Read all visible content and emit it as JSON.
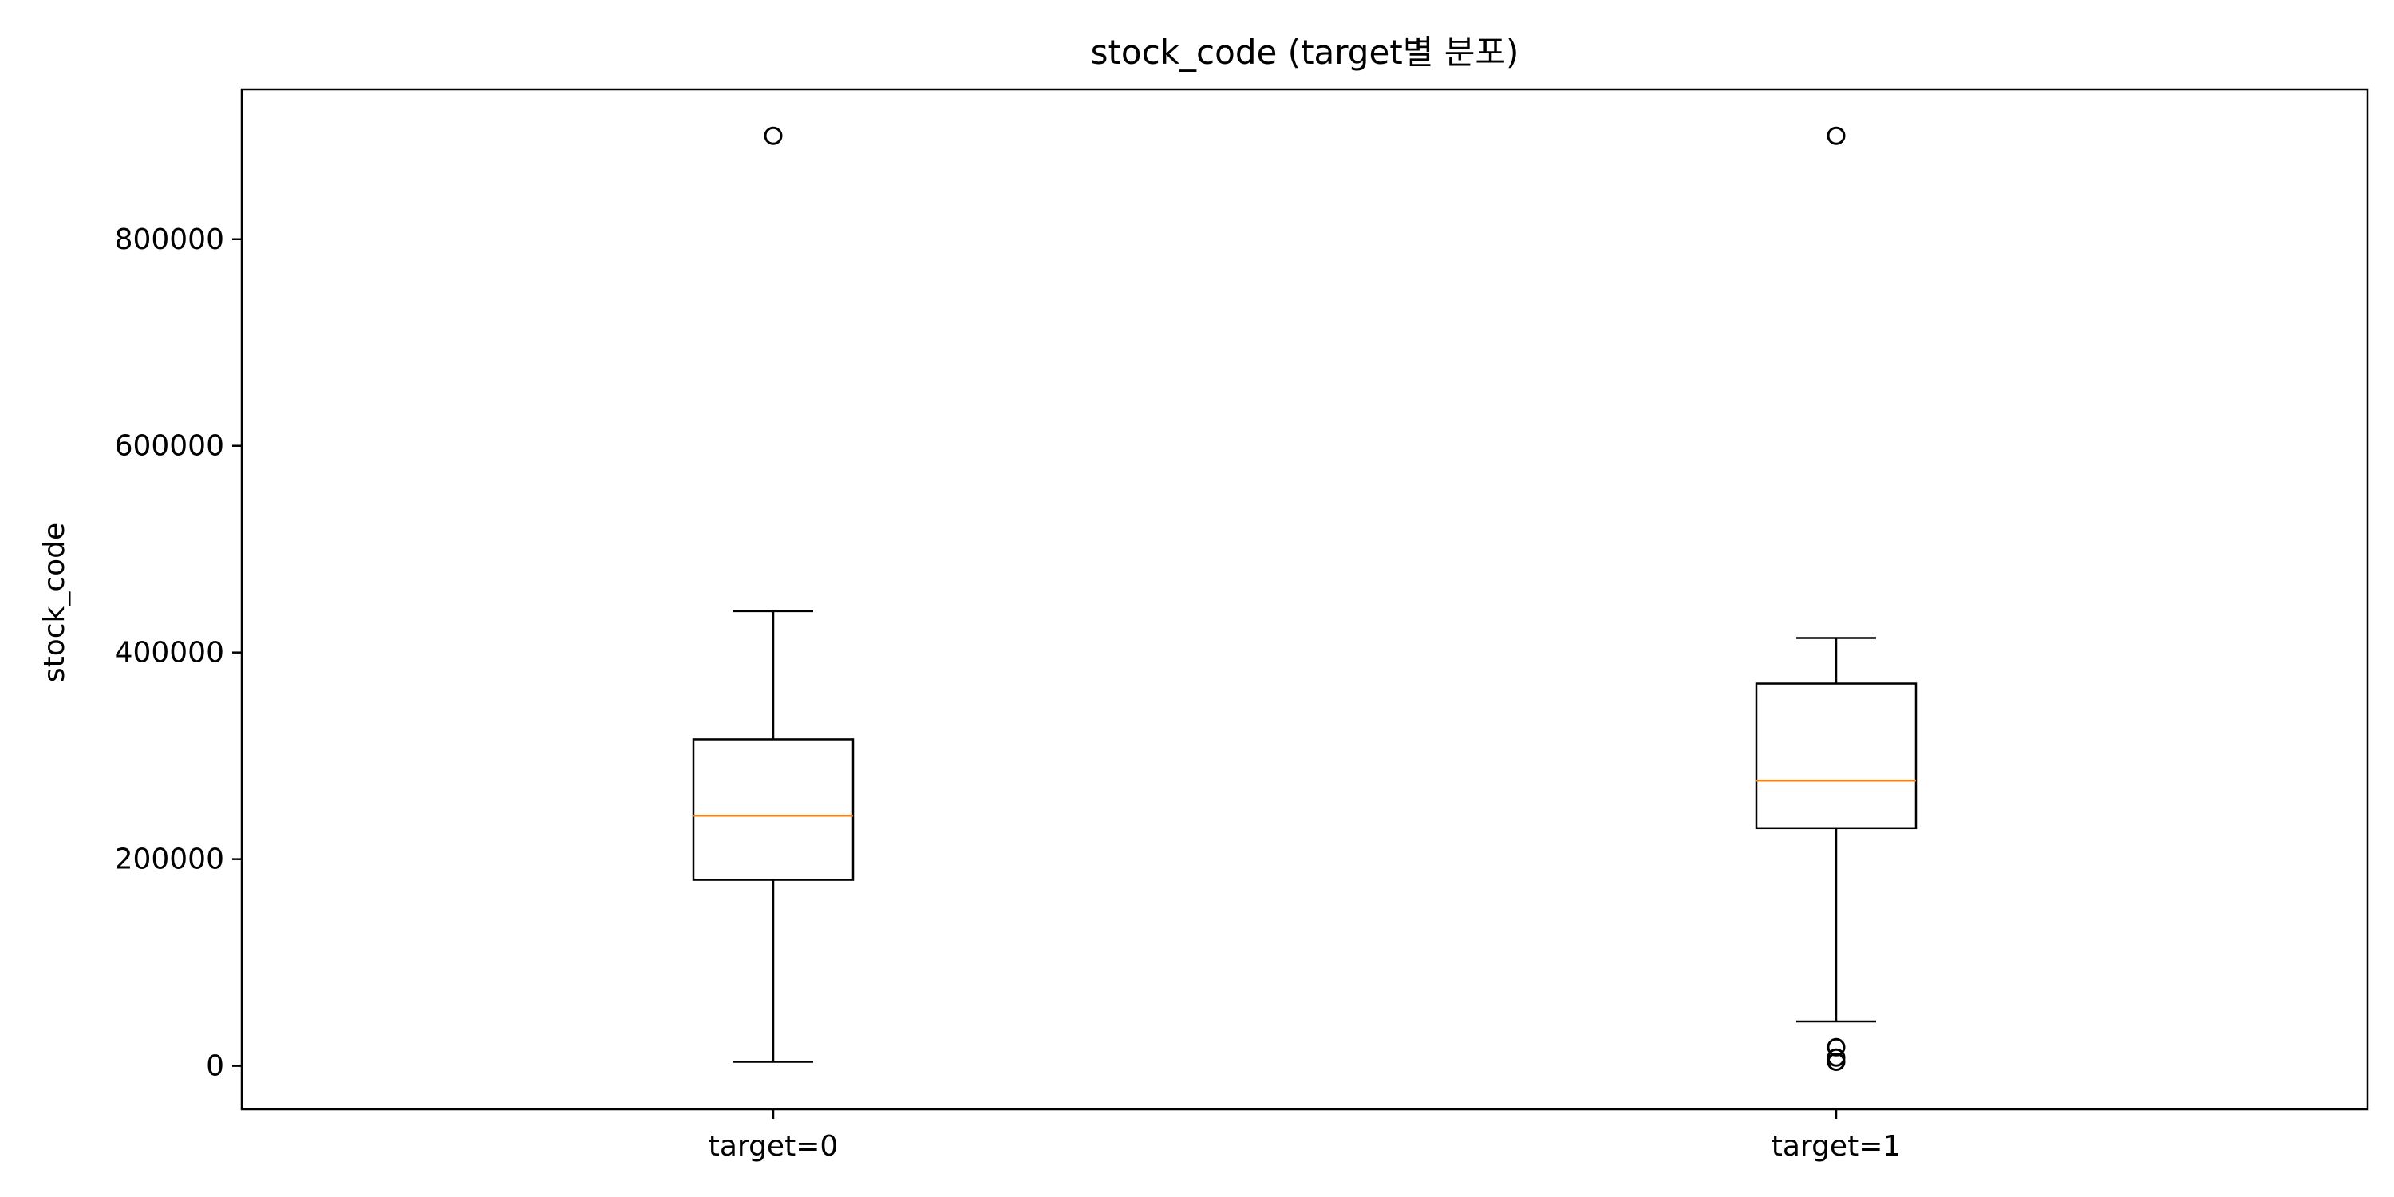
{
  "chart_data": {
    "type": "box",
    "title": "stock_code (target별 분포)",
    "xlabel": "",
    "ylabel": "stock_code",
    "ylim": [
      -42000,
      945000
    ],
    "yticks": [
      0,
      200000,
      400000,
      600000,
      800000
    ],
    "ytick_labels": [
      "0",
      "200000",
      "400000",
      "600000",
      "800000"
    ],
    "grid": false,
    "categories": [
      "target=0",
      "target=1"
    ],
    "boxes": [
      {
        "label": "target=0",
        "whisker_low": 4000,
        "q1": 180000,
        "median": 242000,
        "q3": 316000,
        "whisker_high": 440000,
        "outliers": [
          900000
        ]
      },
      {
        "label": "target=1",
        "whisker_low": 43000,
        "q1": 230000,
        "median": 276000,
        "q3": 370000,
        "whisker_high": 414000,
        "outliers": [
          900000,
          18000,
          8000,
          4000
        ]
      }
    ],
    "colors": {
      "box": "#000000",
      "median": "#ff7f0e",
      "outlier": "#000000"
    }
  }
}
